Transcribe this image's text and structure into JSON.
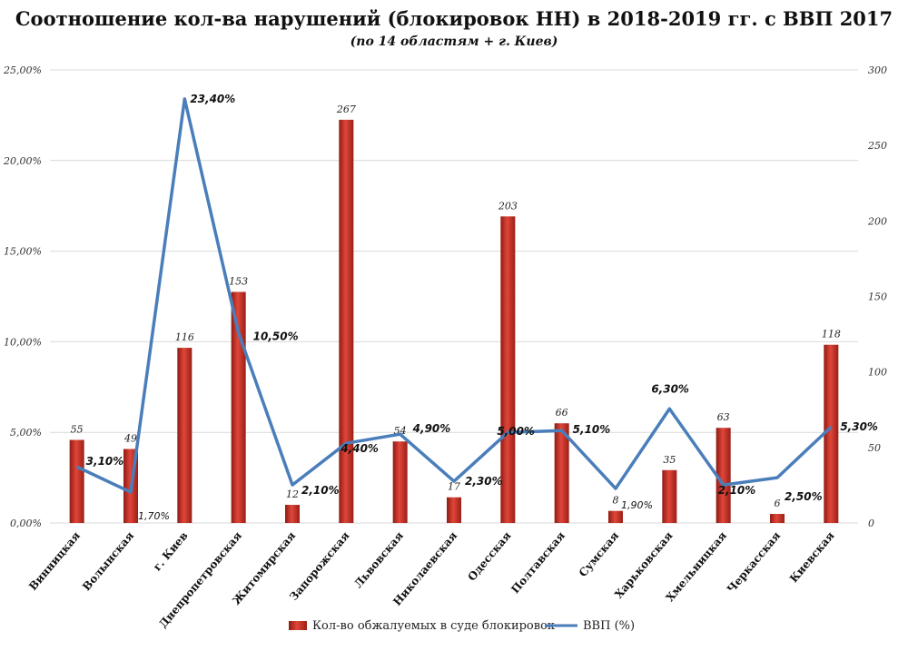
{
  "chart_data": {
    "type": "bar",
    "title": "Соотношение кол-ва нарушений (блокировок НН) в 2018-2019 гг. с ВВП 2017",
    "subtitle": "(по 14 областям + г. Киев)",
    "categories": [
      "Винницкая",
      "Волынская",
      "г. Киев",
      "Днепропетровская",
      "Житомирская",
      "Запорожская",
      "Львовская",
      "Николаевская",
      "Одесская",
      "Полтавская",
      "Сумская",
      "Харьковская",
      "Хмельницкая",
      "Черкасская",
      "Киевская"
    ],
    "series": [
      {
        "name": "Кол-во обжалуемых в суде блокировок",
        "type": "bar",
        "axis": "right",
        "color": "#c0392b",
        "values": [
          55,
          49,
          116,
          153,
          12,
          267,
          54,
          17,
          203,
          66,
          8,
          35,
          63,
          6,
          118
        ],
        "labels": [
          "55",
          "49",
          "116",
          "153",
          "12",
          "267",
          "54",
          "17",
          "203",
          "66",
          "8",
          "35",
          "63",
          "6",
          "118"
        ]
      },
      {
        "name": "ВВП (%)",
        "type": "line",
        "axis": "left",
        "color": "#4a7ebb",
        "values": [
          3.1,
          1.7,
          23.4,
          10.5,
          2.1,
          4.4,
          4.9,
          2.3,
          5.0,
          5.1,
          1.9,
          6.3,
          2.1,
          2.5,
          5.3
        ],
        "labels": [
          "3,10%",
          "1,70%",
          "23,40%",
          "10,50%",
          "2,10%",
          "4,40%",
          "4,90%",
          "2,30%",
          "5,00%",
          "5,10%",
          "1,90%",
          "6,30%",
          "2,10%",
          "2,50%",
          "5,30%"
        ]
      }
    ],
    "y_left": {
      "min": 0,
      "max": 25,
      "ticks": [
        "0,00%",
        "5,00%",
        "10,00%",
        "15,00%",
        "20,00%",
        "25,00%"
      ]
    },
    "y_right": {
      "min": 0,
      "max": 300,
      "ticks": [
        "0",
        "50",
        "100",
        "150",
        "200",
        "250",
        "300"
      ]
    },
    "grid": true,
    "legend": "bottom"
  }
}
